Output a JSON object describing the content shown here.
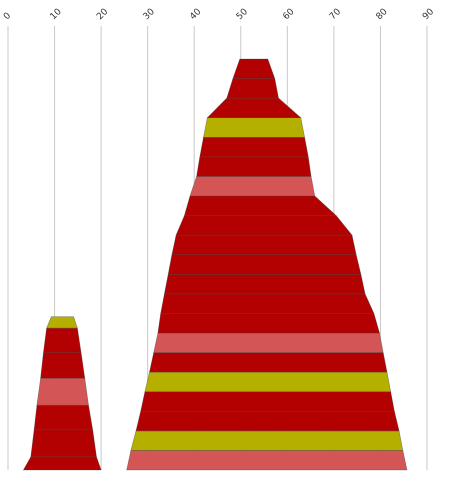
{
  "chart_data": {
    "type": "bar",
    "subtype": "stacked-trapezoid-stacks",
    "x_axis": {
      "min": 0,
      "max": 90,
      "ticks": [
        0,
        10,
        20,
        30,
        40,
        50,
        60,
        70,
        80,
        90
      ],
      "position": "top",
      "tick_label_rotation": -45
    },
    "grid": true,
    "legend": "none",
    "colors": {
      "dark_red": "#b30000",
      "light_red": "#d45555",
      "olive": "#b5b000"
    },
    "stacks": [
      {
        "bands": [
          {
            "bottom": [
              3.3,
              20.0
            ],
            "top": [
              4.9,
              19.0
            ],
            "color": "dark_red"
          },
          {
            "bottom": [
              4.9,
              19.0
            ],
            "top": [
              5.6,
              18.2
            ],
            "color": "dark_red"
          },
          {
            "bottom": [
              5.6,
              18.2
            ],
            "top": [
              6.2,
              17.3
            ],
            "color": "dark_red"
          },
          {
            "bottom": [
              6.2,
              17.3
            ],
            "top": [
              7.0,
              16.5
            ],
            "color": "light_red"
          },
          {
            "bottom": [
              7.0,
              16.5
            ],
            "top": [
              7.6,
              15.7
            ],
            "color": "dark_red"
          },
          {
            "bottom": [
              7.6,
              15.7
            ],
            "top": [
              8.3,
              14.9
            ],
            "color": "dark_red"
          },
          {
            "bottom": [
              8.3,
              14.9
            ],
            "top": [
              9.3,
              14.1
            ],
            "color": "olive"
          }
        ]
      },
      {
        "bands": [
          {
            "bottom": [
              25.5,
              85.7
            ],
            "top": [
              26.4,
              84.8
            ],
            "color": "light_red"
          },
          {
            "bottom": [
              26.4,
              84.8
            ],
            "top": [
              27.5,
              84.0
            ],
            "color": "olive"
          },
          {
            "bottom": [
              27.5,
              84.0
            ],
            "top": [
              28.5,
              83.0
            ],
            "color": "dark_red"
          },
          {
            "bottom": [
              28.5,
              83.0
            ],
            "top": [
              29.4,
              82.2
            ],
            "color": "dark_red"
          },
          {
            "bottom": [
              29.4,
              82.2
            ],
            "top": [
              30.4,
              81.4
            ],
            "color": "olive"
          },
          {
            "bottom": [
              30.4,
              81.4
            ],
            "top": [
              31.3,
              80.6
            ],
            "color": "dark_red"
          },
          {
            "bottom": [
              31.3,
              80.6
            ],
            "top": [
              32.2,
              79.8
            ],
            "color": "light_red"
          },
          {
            "bottom": [
              32.2,
              79.8
            ],
            "top": [
              32.8,
              78.6
            ],
            "color": "dark_red"
          },
          {
            "bottom": [
              32.8,
              78.6
            ],
            "top": [
              33.6,
              76.7
            ],
            "color": "dark_red"
          },
          {
            "bottom": [
              33.6,
              76.7
            ],
            "top": [
              34.4,
              75.8
            ],
            "color": "dark_red"
          },
          {
            "bottom": [
              34.4,
              75.8
            ],
            "top": [
              35.2,
              74.8
            ],
            "color": "dark_red"
          },
          {
            "bottom": [
              35.2,
              74.8
            ],
            "top": [
              36.1,
              73.9
            ],
            "color": "dark_red"
          },
          {
            "bottom": [
              36.1,
              73.9
            ],
            "top": [
              37.9,
              70.5
            ],
            "color": "dark_red"
          },
          {
            "bottom": [
              37.9,
              70.5
            ],
            "top": [
              39.1,
              65.9
            ],
            "color": "dark_red"
          },
          {
            "bottom": [
              39.1,
              65.9
            ],
            "top": [
              40.5,
              65.1
            ],
            "color": "light_red"
          },
          {
            "bottom": [
              40.5,
              65.1
            ],
            "top": [
              41.2,
              64.5
            ],
            "color": "dark_red"
          },
          {
            "bottom": [
              41.2,
              64.5
            ],
            "top": [
              42.0,
              63.7
            ],
            "color": "dark_red"
          },
          {
            "bottom": [
              42.0,
              63.7
            ],
            "top": [
              42.8,
              62.9
            ],
            "color": "olive"
          },
          {
            "bottom": [
              42.8,
              62.9
            ],
            "top": [
              47.0,
              58.1
            ],
            "color": "dark_red"
          },
          {
            "bottom": [
              47.0,
              58.1
            ],
            "top": [
              48.3,
              57.3
            ],
            "color": "dark_red"
          },
          {
            "bottom": [
              48.3,
              57.3
            ],
            "top": [
              49.8,
              55.8
            ],
            "color": "dark_red"
          }
        ]
      }
    ]
  }
}
